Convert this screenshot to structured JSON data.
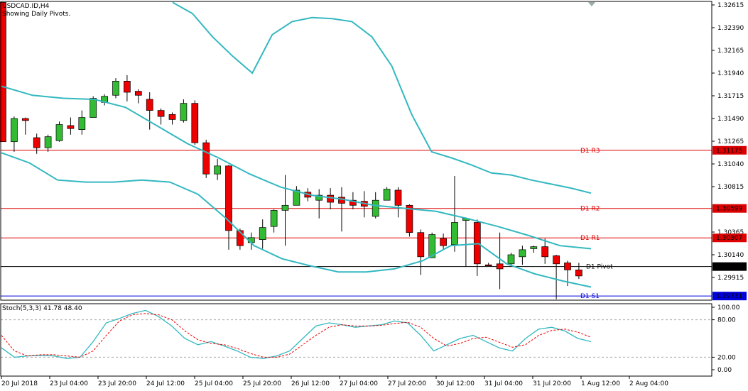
{
  "header": {
    "symbol": "USDCAD.ID,H4",
    "note": "Showing Daily Pivots."
  },
  "stoch_label": "Stoch(5,3,3) 41.78 48.40",
  "colors": {
    "bull": "#33bb33",
    "bear": "#ee0000",
    "band": "#33b8c0",
    "resistance": "#dd0000",
    "support": "#0000dd",
    "pivot": "#000000",
    "stoch_main": "#33b8c0",
    "stoch_signal": "#ee0000"
  },
  "price_axis": {
    "ticks": [
      "1.32615",
      "1.32390",
      "1.32165",
      "1.31940",
      "1.31715",
      "1.31490",
      "1.31265",
      "1.31040",
      "1.30815",
      "1.30365",
      "1.30140",
      "1.29915"
    ],
    "ylim": [
      1.2969,
      1.3265
    ]
  },
  "pivot_levels": [
    {
      "name": "D1 R3",
      "value": 1.31175,
      "label": "1.31175",
      "kind": "resistance"
    },
    {
      "name": "D1 R2",
      "value": 1.30599,
      "label": "1.30599",
      "kind": "resistance"
    },
    {
      "name": "D1 R1",
      "value": 1.30307,
      "label": "1.30307",
      "kind": "resistance"
    },
    {
      "name": "D1 Pivot",
      "value": 1.30023,
      "label": "1.30023",
      "kind": "pivot"
    },
    {
      "name": "D1 S1",
      "value": 1.29731,
      "label": "1.29731",
      "kind": "support"
    }
  ],
  "stoch_axis": {
    "ticks": [
      "100.00",
      "80.00",
      "20.00",
      "0.00"
    ],
    "levels": [
      100,
      80,
      20,
      0
    ]
  },
  "time_axis": [
    "20 Jul 2018",
    "23 Jul 04:00",
    "23 Jul 20:00",
    "24 Jul 12:00",
    "25 Jul 04:00",
    "25 Jul 20:00",
    "26 Jul 12:00",
    "27 Jul 04:00",
    "27 Jul 20:00",
    "30 Jul 12:00",
    "31 Jul 04:00",
    "31 Jul 20:00",
    "1 Aug 12:00",
    "2 Aug 04:00"
  ],
  "chart_data": {
    "type": "candlestick",
    "title": "USDCAD.ID,H4",
    "candles": [
      [
        1.3264,
        1.3264,
        1.3126,
        1.3126
      ],
      [
        1.3126,
        1.3151,
        1.3116,
        1.3149
      ],
      [
        1.3149,
        1.315,
        1.3133,
        1.3147
      ],
      [
        1.313,
        1.3134,
        1.3114,
        1.312
      ],
      [
        1.312,
        1.3133,
        1.3116,
        1.3131
      ],
      [
        1.3127,
        1.3146,
        1.3126,
        1.3143
      ],
      [
        1.3142,
        1.315,
        1.3133,
        1.3139
      ],
      [
        1.3138,
        1.3157,
        1.3133,
        1.315
      ],
      [
        1.315,
        1.3171,
        1.315,
        1.3169
      ],
      [
        1.3165,
        1.3173,
        1.3162,
        1.3171
      ],
      [
        1.3172,
        1.3189,
        1.3169,
        1.3186
      ],
      [
        1.3186,
        1.3192,
        1.3166,
        1.3175
      ],
      [
        1.3176,
        1.3178,
        1.3164,
        1.3172
      ],
      [
        1.3168,
        1.3175,
        1.3138,
        1.3157
      ],
      [
        1.3157,
        1.3159,
        1.3143,
        1.3151
      ],
      [
        1.3153,
        1.3155,
        1.3143,
        1.3148
      ],
      [
        1.3147,
        1.3168,
        1.3145,
        1.3164
      ],
      [
        1.3164,
        1.3167,
        1.3123,
        1.3125
      ],
      [
        1.3125,
        1.3128,
        1.309,
        1.3094
      ],
      [
        1.3094,
        1.3109,
        1.3088,
        1.3102
      ],
      [
        1.3102,
        1.3103,
        1.3019,
        1.3038
      ],
      [
        1.3038,
        1.304,
        1.3019,
        1.3023
      ],
      [
        1.3026,
        1.3036,
        1.3019,
        1.3031
      ],
      [
        1.3029,
        1.3049,
        1.302,
        1.3041
      ],
      [
        1.3042,
        1.3059,
        1.3036,
        1.3058
      ],
      [
        1.3058,
        1.3093,
        1.3023,
        1.3063
      ],
      [
        1.3063,
        1.3082,
        1.3063,
        1.3078
      ],
      [
        1.3076,
        1.308,
        1.3067,
        1.3071
      ],
      [
        1.3068,
        1.3079,
        1.305,
        1.3073
      ],
      [
        1.3073,
        1.308,
        1.3059,
        1.3066
      ],
      [
        1.3071,
        1.3081,
        1.3037,
        1.3065
      ],
      [
        1.3068,
        1.3076,
        1.3059,
        1.3063
      ],
      [
        1.3067,
        1.3077,
        1.3051,
        1.3062
      ],
      [
        1.3052,
        1.3076,
        1.305,
        1.3068
      ],
      [
        1.3068,
        1.3081,
        1.3068,
        1.3079
      ],
      [
        1.3078,
        1.3081,
        1.3051,
        1.3063
      ],
      [
        1.3063,
        1.3064,
        1.3032,
        1.3036
      ],
      [
        1.3036,
        1.3039,
        1.2994,
        1.3012
      ],
      [
        1.3011,
        1.3036,
        1.3011,
        1.3034
      ],
      [
        1.303,
        1.3035,
        1.3019,
        1.3023
      ],
      [
        1.3024,
        1.3092,
        1.3017,
        1.3046
      ],
      [
        1.3048,
        1.3051,
        1.3002,
        1.305
      ],
      [
        1.3046,
        1.3049,
        1.2993,
        1.3005
      ],
      [
        1.3004,
        1.3006,
        1.3003,
        1.3003
      ],
      [
        1.3005,
        1.3036,
        1.298,
        1.3
      ],
      [
        1.3005,
        1.3016,
        1.3003,
        1.3014
      ],
      [
        1.3012,
        1.3023,
        1.3004,
        1.3019
      ],
      [
        1.302,
        1.3023,
        1.3016,
        1.3022
      ],
      [
        1.3022,
        1.303,
        1.3005,
        1.3012
      ],
      [
        1.3013,
        1.3014,
        1.297,
        1.3005
      ],
      [
        1.3006,
        1.3008,
        1.2983,
        1.2999
      ],
      [
        1.2999,
        1.3006,
        1.299,
        1.2993
      ]
    ],
    "bollinger": {
      "upper": [
        1.3264,
        1.3253,
        1.323,
        1.3211,
        1.3194,
        1.3232,
        1.3245,
        1.3249,
        1.3248,
        1.3245,
        1.323,
        1.3201,
        1.3153,
        1.3116,
        1.311,
        1.3103,
        1.3095,
        1.3093,
        1.3088,
        1.3084,
        1.308,
        1.3075
      ],
      "middle": [
        1.3181,
        1.3172,
        1.3169,
        1.3168,
        1.316,
        1.3142,
        1.3124,
        1.311,
        1.3094,
        1.3081,
        1.3073,
        1.3069,
        1.3063,
        1.306,
        1.3057,
        1.305,
        1.3042,
        1.3033,
        1.3023,
        1.302
      ],
      "lower": [
        1.3115,
        1.3105,
        1.3088,
        1.3086,
        1.3086,
        1.3088,
        1.3086,
        1.3074,
        1.305,
        1.3023,
        1.301,
        1.3003,
        1.2997,
        1.2997,
        1.3,
        1.3008,
        1.3023,
        1.3025,
        1.3005,
        1.2995,
        1.2988,
        1.2982
      ]
    },
    "stochastic": {
      "main": [
        35,
        20,
        22,
        23,
        22,
        18,
        20,
        45,
        75,
        82,
        90,
        95,
        85,
        70,
        50,
        40,
        45,
        38,
        30,
        20,
        18,
        22,
        30,
        50,
        70,
        75,
        72,
        68,
        70,
        72,
        78,
        75,
        55,
        30,
        40,
        50,
        55,
        45,
        35,
        30,
        50,
        65,
        68,
        62,
        50,
        45
      ],
      "signal": [
        55,
        30,
        22,
        24,
        24,
        22,
        20,
        30,
        55,
        78,
        88,
        90,
        88,
        80,
        62,
        48,
        42,
        40,
        34,
        26,
        20,
        20,
        25,
        40,
        55,
        68,
        72,
        70,
        70,
        71,
        74,
        76,
        68,
        50,
        38,
        42,
        50,
        52,
        44,
        36,
        40,
        55,
        63,
        65,
        60,
        52
      ]
    },
    "stochastic_ylim": [
      0,
      100
    ],
    "y_unit": "price"
  }
}
